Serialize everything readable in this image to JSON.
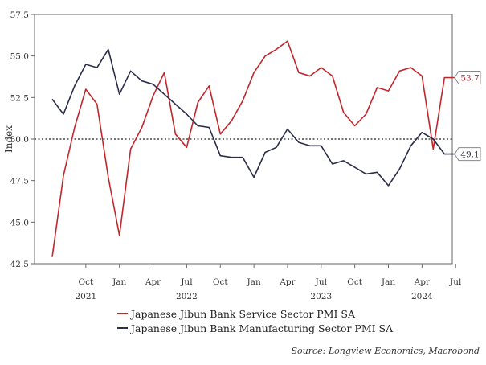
{
  "chart_data": {
    "type": "line",
    "ylabel": "Index",
    "ylim": [
      42.5,
      57.5
    ],
    "yticks": [
      "42.5",
      "45.0",
      "47.5",
      "50.0",
      "52.5",
      "55.0",
      "57.5"
    ],
    "reference_line": 50.0,
    "x_months": [
      "Jul 2021",
      "Aug 2021",
      "Sep 2021",
      "Oct 2021",
      "Nov 2021",
      "Dec 2021",
      "Jan 2022",
      "Feb 2022",
      "Mar 2022",
      "Apr 2022",
      "May 2022",
      "Jun 2022",
      "Jul 2022",
      "Aug 2022",
      "Sep 2022",
      "Oct 2022",
      "Nov 2022",
      "Dec 2022",
      "Jan 2023",
      "Feb 2023",
      "Mar 2023",
      "Apr 2023",
      "May 2023",
      "Jun 2023",
      "Jul 2023",
      "Aug 2023",
      "Sep 2023",
      "Oct 2023",
      "Nov 2023",
      "Dec 2023",
      "Jan 2024",
      "Feb 2024",
      "Mar 2024",
      "Apr 2024",
      "May 2024",
      "Jun 2024",
      "Jul 2024"
    ],
    "xticks": [
      {
        "month_index": 3,
        "label": "Oct",
        "year": "2021"
      },
      {
        "month_index": 6,
        "label": "Jan",
        "year": ""
      },
      {
        "month_index": 9,
        "label": "Apr",
        "year": ""
      },
      {
        "month_index": 12,
        "label": "Jul",
        "year": "2022"
      },
      {
        "month_index": 15,
        "label": "Oct",
        "year": ""
      },
      {
        "month_index": 18,
        "label": "Jan",
        "year": ""
      },
      {
        "month_index": 21,
        "label": "Apr",
        "year": ""
      },
      {
        "month_index": 24,
        "label": "Jul",
        "year": "2023"
      },
      {
        "month_index": 27,
        "label": "Oct",
        "year": ""
      },
      {
        "month_index": 30,
        "label": "Jan",
        "year": ""
      },
      {
        "month_index": 33,
        "label": "Apr",
        "year": "2024"
      },
      {
        "month_index": 36,
        "label": "Jul",
        "year": ""
      }
    ],
    "series": [
      {
        "name": "Japanese Jibun Bank Service Sector PMI SA",
        "color": "#c0272d",
        "last_label": "53.7",
        "values": [
          42.9,
          47.8,
          50.7,
          53.0,
          52.1,
          47.7,
          44.2,
          49.4,
          50.7,
          52.6,
          54.0,
          50.3,
          49.5,
          52.2,
          53.2,
          50.3,
          51.1,
          52.3,
          54.0,
          55.0,
          55.4,
          55.9,
          54.0,
          53.8,
          54.3,
          53.8,
          51.6,
          50.8,
          51.5,
          53.1,
          52.9,
          54.1,
          54.3,
          53.8,
          49.4,
          53.7,
          53.7
        ]
      },
      {
        "name": "Japanese Jibun Bank Manufacturing Sector PMI SA",
        "color": "#2b2d4a",
        "last_label": "49.1",
        "values": [
          52.4,
          51.5,
          53.2,
          54.5,
          54.3,
          55.4,
          52.7,
          54.1,
          53.5,
          53.3,
          52.7,
          52.1,
          51.5,
          50.8,
          50.7,
          49.0,
          48.9,
          48.9,
          47.7,
          49.2,
          49.5,
          50.6,
          49.8,
          49.6,
          49.6,
          48.5,
          48.7,
          48.3,
          47.9,
          48.0,
          47.2,
          48.2,
          49.6,
          50.4,
          50.0,
          49.1,
          49.1
        ]
      }
    ]
  },
  "source_text": "Source: Longview Economics, Macrobond"
}
